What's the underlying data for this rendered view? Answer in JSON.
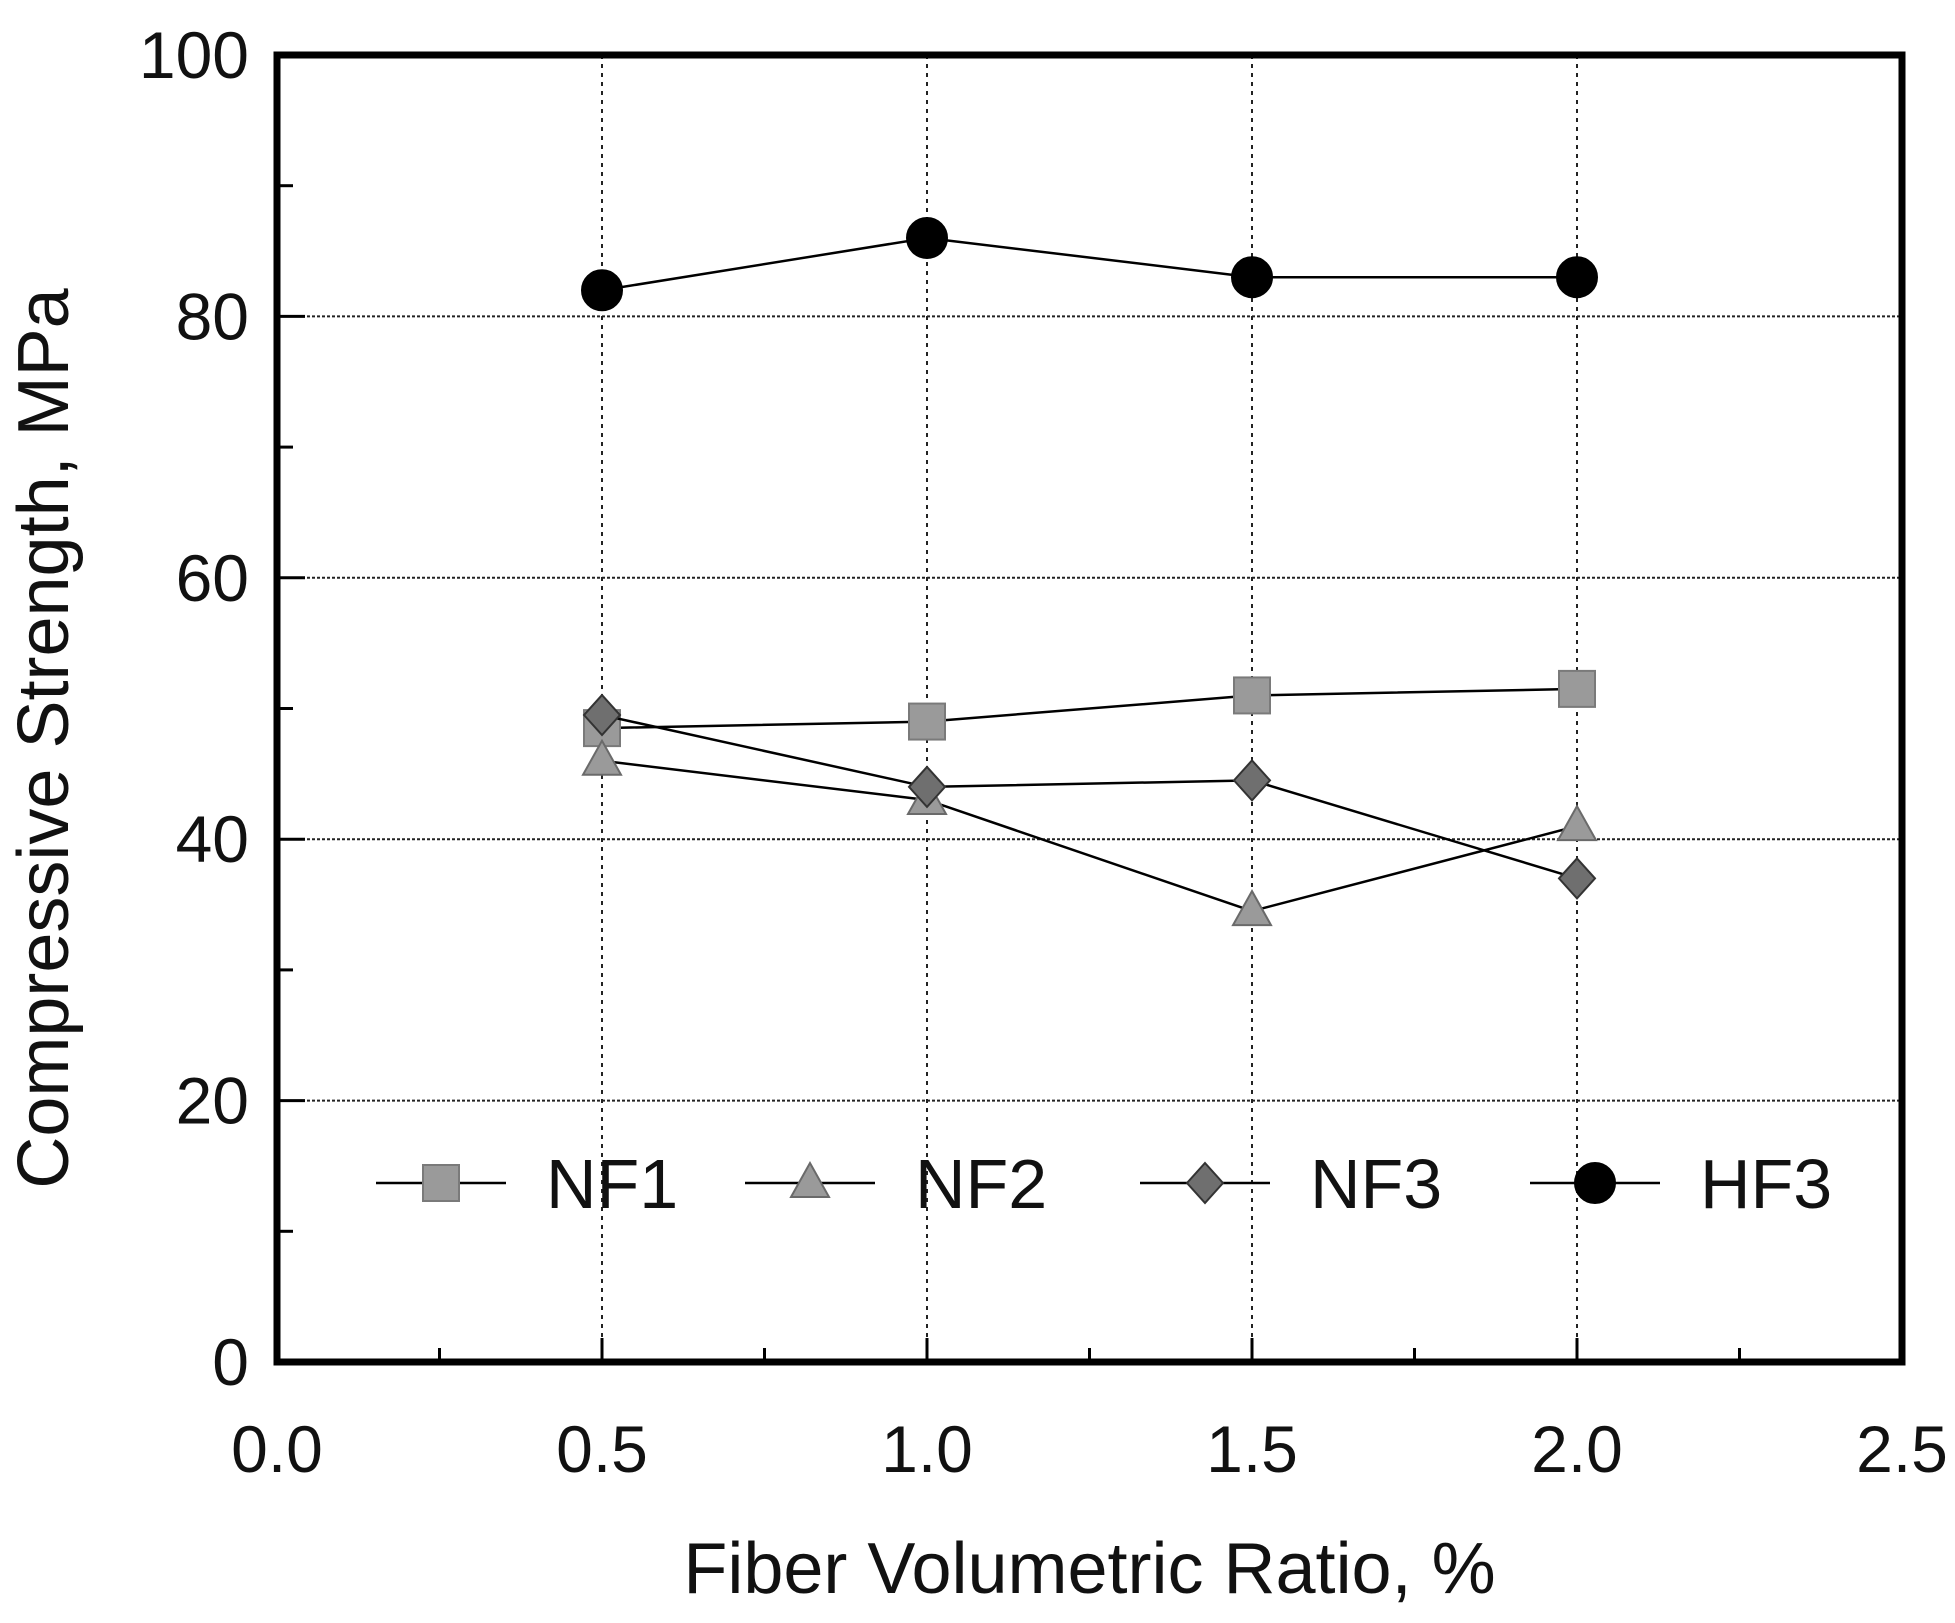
{
  "chart_data": {
    "type": "line",
    "title": "",
    "xlabel": "Fiber Volumetric Ratio, %",
    "ylabel": "Compressive Strength, MPa",
    "xlim": [
      0,
      2.5
    ],
    "ylim": [
      0,
      100
    ],
    "x_ticks": [
      0,
      0.5,
      1.0,
      1.5,
      2.0,
      2.5
    ],
    "x_tick_labels": [
      "0.0",
      "0.5",
      "1.0",
      "1.5",
      "2.0",
      "2.5"
    ],
    "y_ticks": [
      0,
      20,
      40,
      60,
      80,
      100
    ],
    "y_tick_labels": [
      "0",
      "20",
      "40",
      "60",
      "80",
      "100"
    ],
    "grid": true,
    "legend_position": "bottom",
    "x": [
      0.5,
      1.0,
      1.5,
      2.0
    ],
    "series": [
      {
        "name": "NF1",
        "marker": "square",
        "color": "#9a9a9a",
        "values": [
          48.5,
          49.0,
          51.0,
          51.5
        ]
      },
      {
        "name": "NF2",
        "marker": "triangle",
        "color": "#9a9a9a",
        "values": [
          46.0,
          43.0,
          34.5,
          41.0
        ]
      },
      {
        "name": "NF3",
        "marker": "diamond",
        "color": "#6f6f6f",
        "values": [
          49.5,
          44.0,
          44.5,
          37.0
        ]
      },
      {
        "name": "HF3",
        "marker": "circle",
        "color": "#000000",
        "values": [
          82.0,
          86.0,
          83.0,
          83.0
        ]
      }
    ]
  }
}
